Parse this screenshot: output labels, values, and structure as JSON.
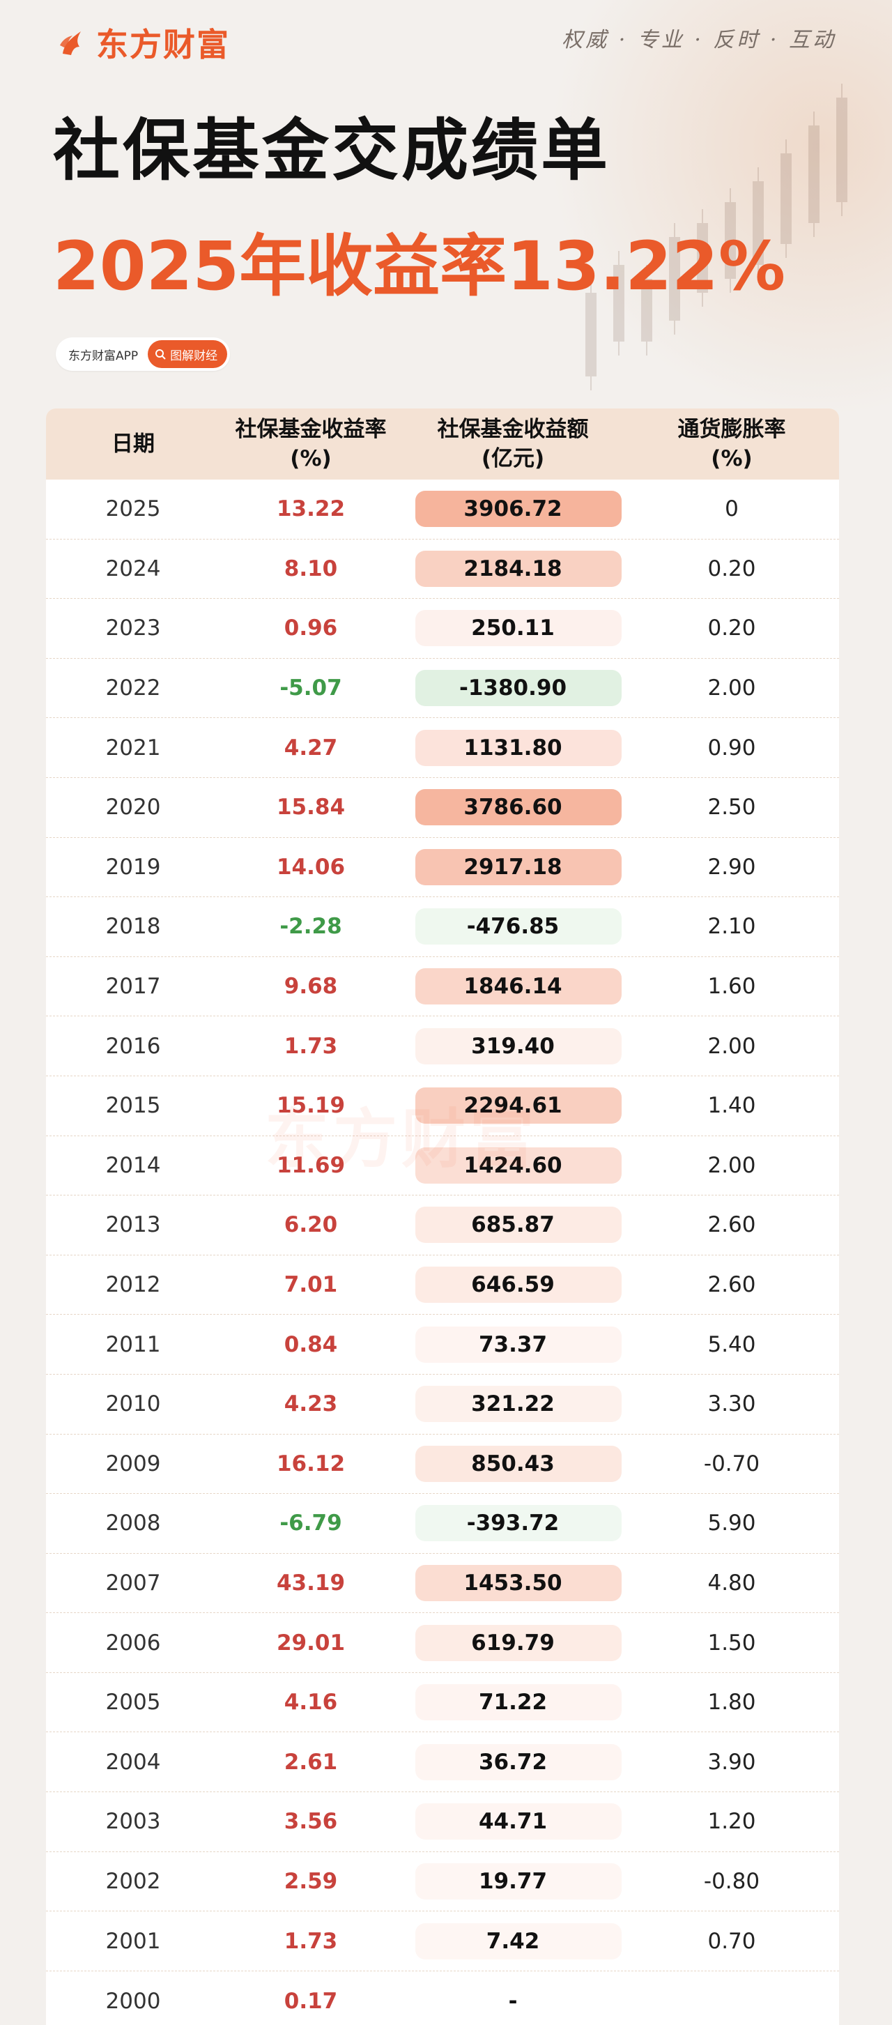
{
  "brand": {
    "name": "东方财富",
    "slogan": "权威 · 专业 · 反时 · 互动",
    "accent_color": "#ea5a2a"
  },
  "title": {
    "main": "社保基金交成绩单",
    "sub": "2025年收益率13.22%"
  },
  "badge": {
    "app_label": "东方财富APP",
    "tag_label": "图解财经"
  },
  "table": {
    "headers": {
      "date": "日期",
      "rate_line1": "社保基金收益率",
      "rate_line2": "(%)",
      "amount_line1": "社保基金收益额",
      "amount_line2": "(亿元)",
      "inflation_line1": "通货膨胀率",
      "inflation_line2": "(%)"
    },
    "colors": {
      "positive": "#c8423c",
      "negative": "#3f9a48",
      "bar_positive": "#f6b49c",
      "bar_negative": "#b9dfbc"
    },
    "rows": [
      {
        "year": "2025",
        "rate": "13.22",
        "amount": "3906.72",
        "inflation": "0",
        "amount_value": 3906.72
      },
      {
        "year": "2024",
        "rate": "8.10",
        "amount": "2184.18",
        "inflation": "0.20",
        "amount_value": 2184.18
      },
      {
        "year": "2023",
        "rate": "0.96",
        "amount": "250.11",
        "inflation": "0.20",
        "amount_value": 250.11
      },
      {
        "year": "2022",
        "rate": "-5.07",
        "amount": "-1380.90",
        "inflation": "2.00",
        "amount_value": -1380.9
      },
      {
        "year": "2021",
        "rate": "4.27",
        "amount": "1131.80",
        "inflation": "0.90",
        "amount_value": 1131.8
      },
      {
        "year": "2020",
        "rate": "15.84",
        "amount": "3786.60",
        "inflation": "2.50",
        "amount_value": 3786.6
      },
      {
        "year": "2019",
        "rate": "14.06",
        "amount": "2917.18",
        "inflation": "2.90",
        "amount_value": 2917.18
      },
      {
        "year": "2018",
        "rate": "-2.28",
        "amount": "-476.85",
        "inflation": "2.10",
        "amount_value": -476.85
      },
      {
        "year": "2017",
        "rate": "9.68",
        "amount": "1846.14",
        "inflation": "1.60",
        "amount_value": 1846.14
      },
      {
        "year": "2016",
        "rate": "1.73",
        "amount": "319.40",
        "inflation": "2.00",
        "amount_value": 319.4
      },
      {
        "year": "2015",
        "rate": "15.19",
        "amount": "2294.61",
        "inflation": "1.40",
        "amount_value": 2294.61
      },
      {
        "year": "2014",
        "rate": "11.69",
        "amount": "1424.60",
        "inflation": "2.00",
        "amount_value": 1424.6
      },
      {
        "year": "2013",
        "rate": "6.20",
        "amount": "685.87",
        "inflation": "2.60",
        "amount_value": 685.87
      },
      {
        "year": "2012",
        "rate": "7.01",
        "amount": "646.59",
        "inflation": "2.60",
        "amount_value": 646.59
      },
      {
        "year": "2011",
        "rate": "0.84",
        "amount": "73.37",
        "inflation": "5.40",
        "amount_value": 73.37
      },
      {
        "year": "2010",
        "rate": "4.23",
        "amount": "321.22",
        "inflation": "3.30",
        "amount_value": 321.22
      },
      {
        "year": "2009",
        "rate": "16.12",
        "amount": "850.43",
        "inflation": "-0.70",
        "amount_value": 850.43
      },
      {
        "year": "2008",
        "rate": "-6.79",
        "amount": "-393.72",
        "inflation": "5.90",
        "amount_value": -393.72
      },
      {
        "year": "2007",
        "rate": "43.19",
        "amount": "1453.50",
        "inflation": "4.80",
        "amount_value": 1453.5
      },
      {
        "year": "2006",
        "rate": "29.01",
        "amount": "619.79",
        "inflation": "1.50",
        "amount_value": 619.79
      },
      {
        "year": "2005",
        "rate": "4.16",
        "amount": "71.22",
        "inflation": "1.80",
        "amount_value": 71.22
      },
      {
        "year": "2004",
        "rate": "2.61",
        "amount": "36.72",
        "inflation": "3.90",
        "amount_value": 36.72
      },
      {
        "year": "2003",
        "rate": "3.56",
        "amount": "44.71",
        "inflation": "1.20",
        "amount_value": 44.71
      },
      {
        "year": "2002",
        "rate": "2.59",
        "amount": "19.77",
        "inflation": "-0.80",
        "amount_value": 19.77
      },
      {
        "year": "2001",
        "rate": "1.73",
        "amount": "7.42",
        "inflation": "0.70",
        "amount_value": 7.42
      },
      {
        "year": "2000",
        "rate": "0.17",
        "amount": "-",
        "inflation": "",
        "amount_value": 0
      }
    ]
  },
  "watermark": "东方财富"
}
